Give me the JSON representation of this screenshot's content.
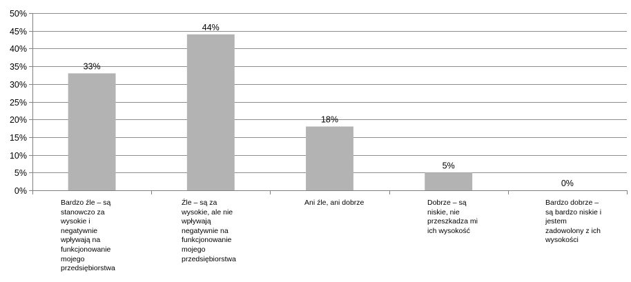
{
  "chart_data": {
    "type": "bar",
    "categories": [
      "Bardzo źle – są\nstanowczo za\nwysokie i\nnegatywnie\nwpływają na\nfunkcjonowanie\nmojego\nprzedsiębiorstwa",
      "Źle – są za\nwysokie, ale nie\nwpływają\nnegatywnie na\nfunkcjonowanie\nmojego\nprzedsiębiorstwa",
      "Ani źle, ani dobrze",
      "Dobrze – są\nniskie, nie\nprzeszkadza mi\nich wysokość",
      "Bardzo dobrze –\nsą bardzo niskie i\njestem\nzadowolony z ich\nwysokości"
    ],
    "values": [
      33,
      44,
      18,
      5,
      0
    ],
    "value_labels": [
      "33%",
      "44%",
      "18%",
      "5%",
      "0%"
    ],
    "ylim": [
      0,
      50
    ],
    "yticks": [
      {
        "value": 0,
        "label": "0%"
      },
      {
        "value": 5,
        "label": "5%"
      },
      {
        "value": 10,
        "label": "10%"
      },
      {
        "value": 15,
        "label": "15%"
      },
      {
        "value": 20,
        "label": "20%"
      },
      {
        "value": 25,
        "label": "25%"
      },
      {
        "value": 30,
        "label": "30%"
      },
      {
        "value": 35,
        "label": "35%"
      },
      {
        "value": 40,
        "label": "40%"
      },
      {
        "value": 45,
        "label": "45%"
      },
      {
        "value": 50,
        "label": "50%"
      }
    ],
    "grid": true,
    "legend": "none",
    "bar_color": "#b3b3b3",
    "grid_color": "#8c8c8c",
    "axis_color": "#808080"
  }
}
